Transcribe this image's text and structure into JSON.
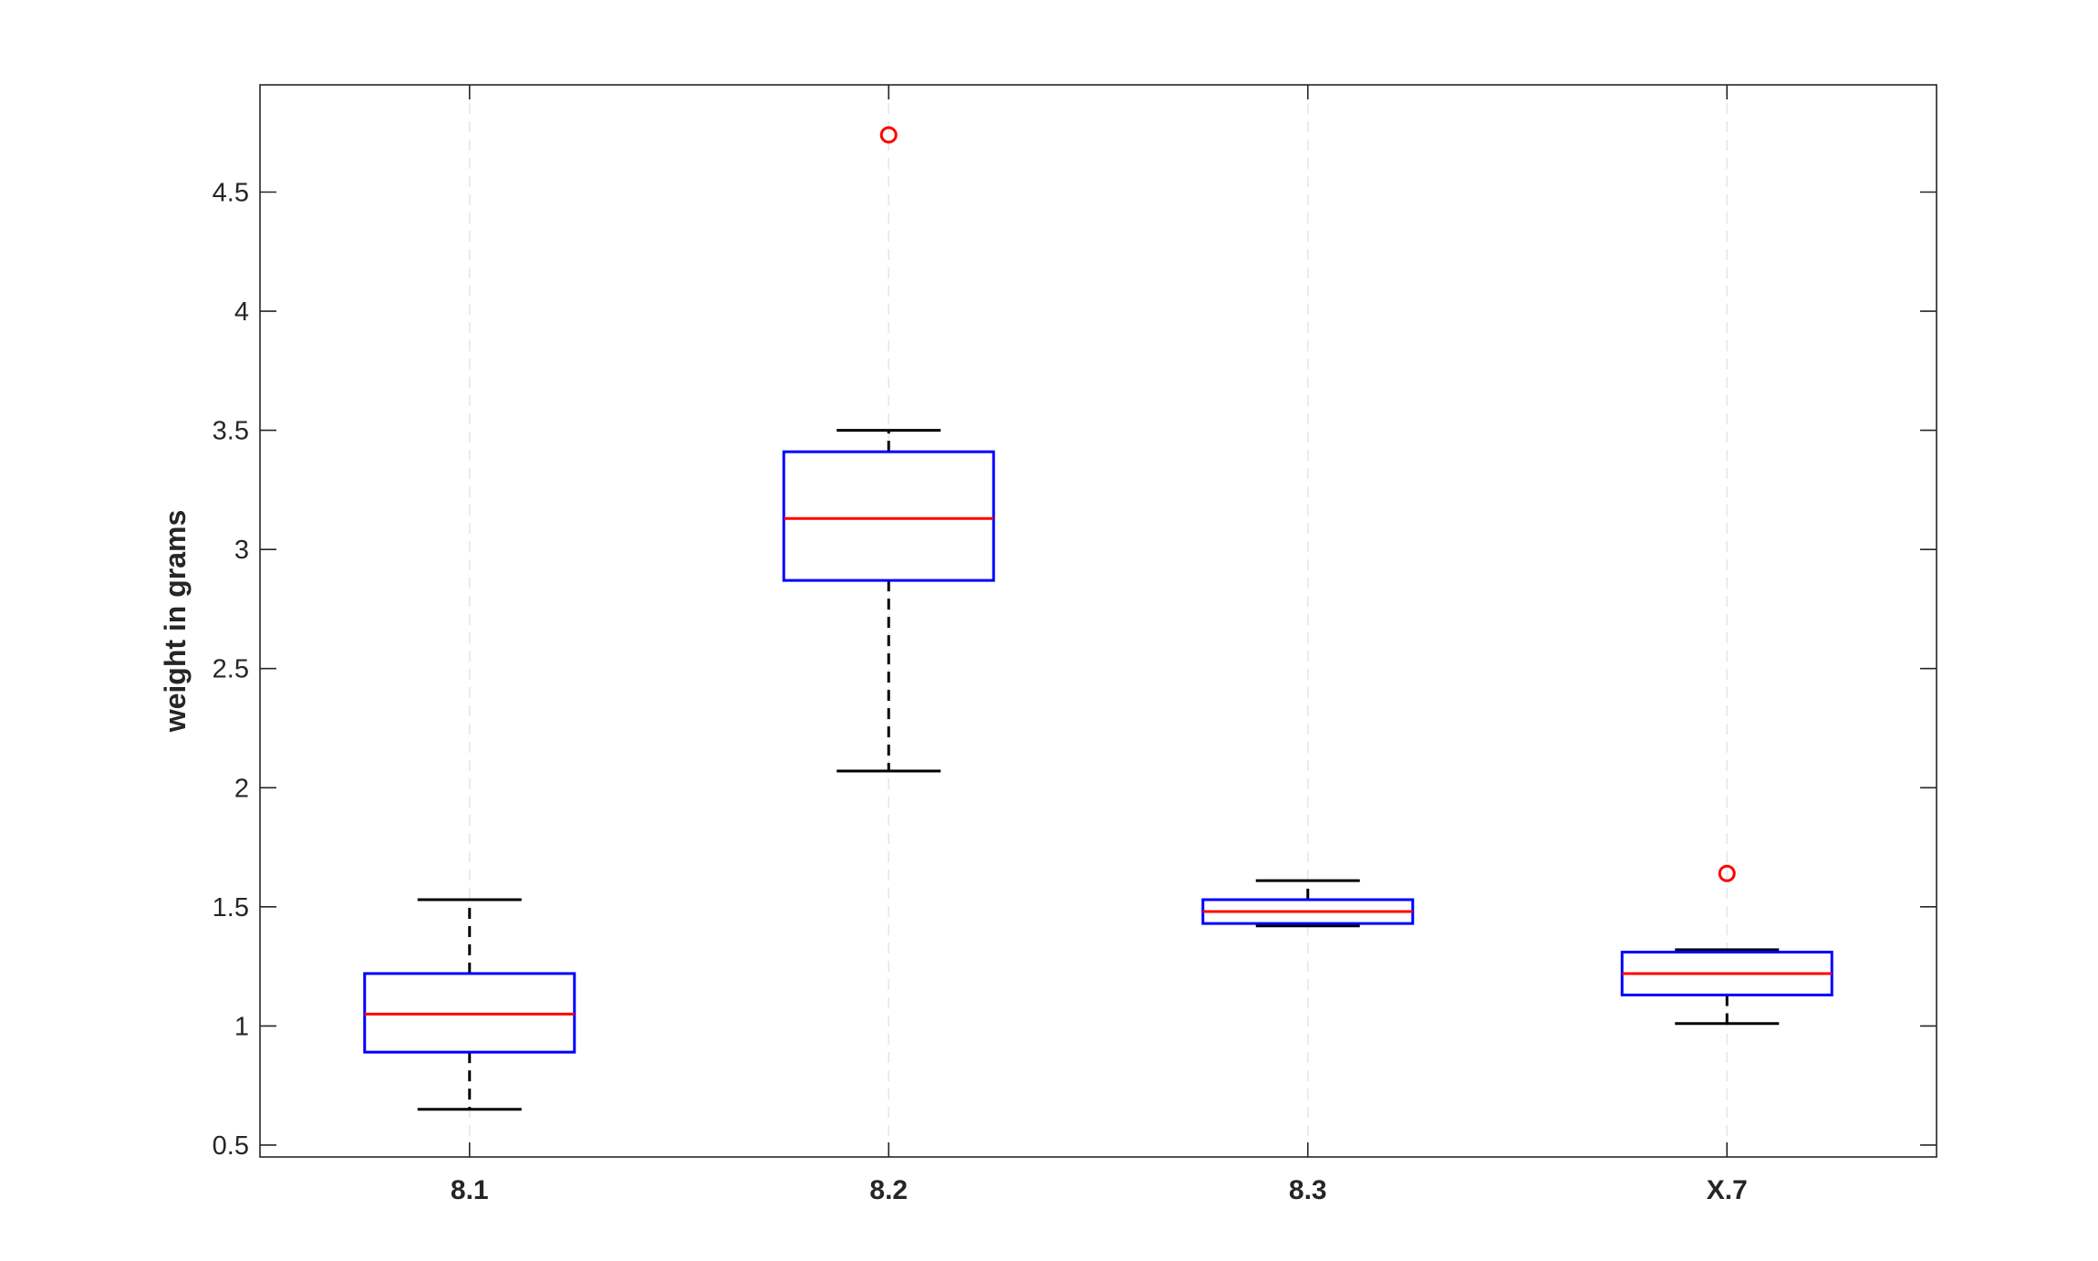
{
  "chart_data": {
    "type": "box",
    "categories": [
      "8.1",
      "8.2",
      "8.3",
      "X.7"
    ],
    "ylabel": "weight in grams",
    "xlabel": "",
    "title": "",
    "ylim": [
      0.45,
      4.95
    ],
    "yticks": [
      0.5,
      1,
      1.5,
      2,
      2.5,
      3,
      3.5,
      4,
      4.5
    ],
    "ytick_labels": [
      "0.5",
      "1",
      "1.5",
      "2",
      "2.5",
      "3",
      "3.5",
      "4",
      "4.5"
    ],
    "grid": "vertical-dashed",
    "boxes": [
      {
        "category": "8.1",
        "whisker_low": 0.65,
        "q1": 0.89,
        "median": 1.05,
        "q3": 1.22,
        "whisker_high": 1.53,
        "outliers": []
      },
      {
        "category": "8.2",
        "whisker_low": 2.07,
        "q1": 2.87,
        "median": 3.13,
        "q3": 3.41,
        "whisker_high": 3.5,
        "outliers": [
          4.74
        ]
      },
      {
        "category": "8.3",
        "whisker_low": 1.42,
        "q1": 1.43,
        "median": 1.48,
        "q3": 1.53,
        "whisker_high": 1.61,
        "outliers": []
      },
      {
        "category": "X.7",
        "whisker_low": 1.01,
        "q1": 1.13,
        "median": 1.22,
        "q3": 1.31,
        "whisker_high": 1.32,
        "outliers": [
          1.64
        ]
      }
    ],
    "colors": {
      "box": "#0000ff",
      "median": "#ff0000",
      "whisker": "#000000",
      "outlier": "#ff0000",
      "grid": "#e6e6e6",
      "axes": "#262626"
    }
  }
}
